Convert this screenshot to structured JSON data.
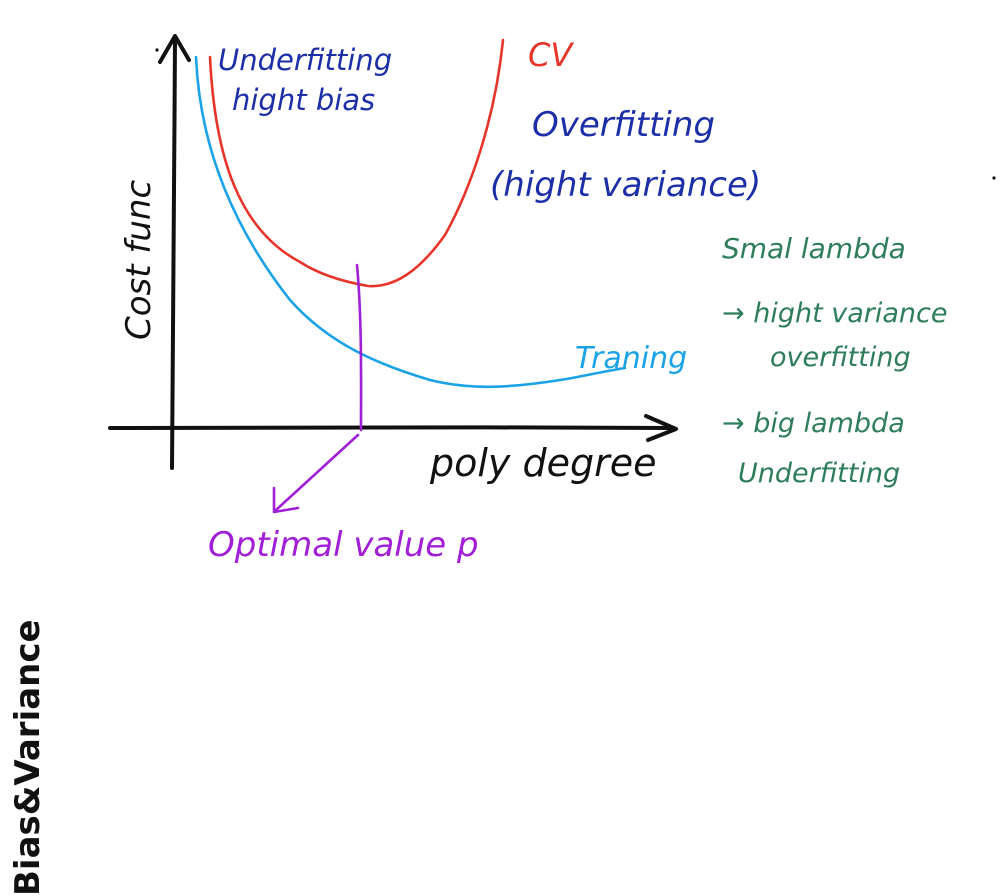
{
  "title": "Bias&Variance",
  "axes": {
    "y_label": "Cost func",
    "x_label": "poly degree"
  },
  "curves": {
    "cv": {
      "label": "CV",
      "color": "#e8352b"
    },
    "training": {
      "label": "Traning",
      "color": "#1aa3e8"
    },
    "optimal": {
      "color": "#a11fd6"
    }
  },
  "annotations": {
    "underfitting_line1": "Underfitting",
    "underfitting_line2": "hight bias",
    "overfitting_line1": "Overfitting",
    "overfitting_line2": "(hight variance)",
    "optimal_label": "Optimal value p",
    "lambda_line1": "Smal lambda",
    "lambda_line2": "→ hight variance",
    "lambda_line3": "overfitting",
    "lambda_line4": "→ big lambda",
    "lambda_line5": "Underfitting"
  },
  "colors": {
    "axis": "#111111",
    "blue_text": "#1d2fa8",
    "green_text": "#2e7d5b",
    "purple_text": "#a11fd6"
  }
}
